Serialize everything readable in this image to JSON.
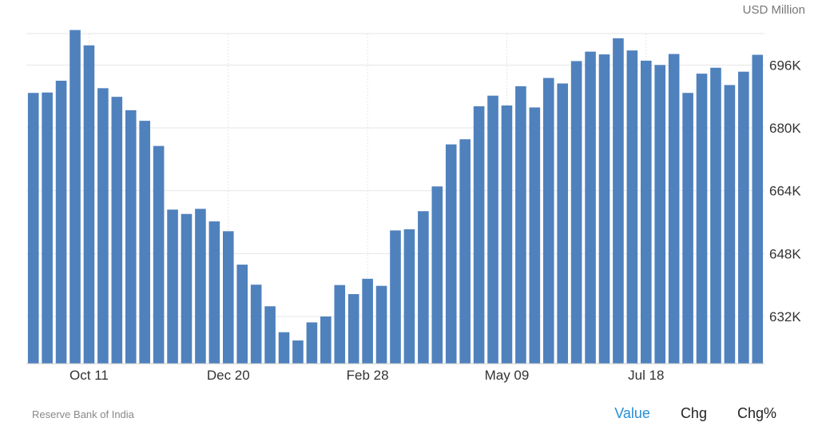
{
  "unit_label": "USD Million",
  "source": "Reserve Bank of India",
  "modes": [
    {
      "label": "Value",
      "active": true
    },
    {
      "label": "Chg",
      "active": false
    },
    {
      "label": "Chg%",
      "active": false
    }
  ],
  "colors": {
    "bar": "#4f81bd",
    "active_mode": "#2a8fd6",
    "grid": "#e6e6e6"
  },
  "chart_data": {
    "type": "bar",
    "ylim": [
      620000,
      704000
    ],
    "yticks": [
      632000,
      648000,
      664000,
      680000,
      696000
    ],
    "ytick_labels": [
      "632K",
      "648K",
      "664K",
      "680K",
      "696K"
    ],
    "xtick_labels": [
      {
        "index": 4.5,
        "label": "Oct 11"
      },
      {
        "index": 14.5,
        "label": "Dec 20"
      },
      {
        "index": 24.5,
        "label": "Feb 28"
      },
      {
        "index": 34.5,
        "label": "May 09"
      },
      {
        "index": 44.5,
        "label": "Jul 18"
      }
    ],
    "grid": true,
    "values": [
      688900,
      689000,
      692000,
      704900,
      701000,
      690100,
      687900,
      684500,
      681800,
      675400,
      659200,
      658100,
      659400,
      656200,
      653700,
      645200,
      640100,
      634600,
      628000,
      625900,
      630500,
      632000,
      640000,
      637700,
      641600,
      639800,
      653900,
      654200,
      658800,
      665100,
      675800,
      677100,
      685500,
      688200,
      685700,
      690600,
      685200,
      692700,
      691300,
      697000,
      699400,
      698700,
      702800,
      699700,
      697100,
      696000,
      698800,
      688900,
      693800,
      695300,
      690900,
      694300,
      698600
    ]
  }
}
